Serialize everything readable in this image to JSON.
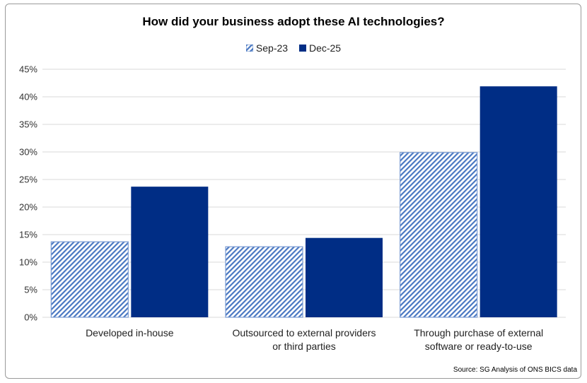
{
  "chart_data": {
    "type": "bar",
    "title": "How did your business adopt these AI technologies?",
    "categories": [
      "Developed in-house",
      "Outsourced to external providers or third parties",
      "Through purchase of external software or ready-to-use"
    ],
    "category_lines": [
      [
        "Developed in-house"
      ],
      [
        "Outsourced to external providers",
        "or third parties"
      ],
      [
        "Through purchase of external",
        "software or ready-to-use"
      ]
    ],
    "series": [
      {
        "name": "Sep-23",
        "values": [
          13.7,
          12.8,
          29.9
        ],
        "color": "#4a78c2",
        "pattern": "diagonal-hatch"
      },
      {
        "name": "Dec-25",
        "values": [
          23.7,
          14.4,
          41.9
        ],
        "color": "#002d85"
      }
    ],
    "ylim": [
      0,
      45
    ],
    "yticks": [
      "0%",
      "5%",
      "10%",
      "15%",
      "20%",
      "25%",
      "30%",
      "35%",
      "40%",
      "45%"
    ],
    "ytick_values": [
      0,
      5,
      10,
      15,
      20,
      25,
      30,
      35,
      40,
      45
    ],
    "grid": true,
    "legend": "top-center",
    "source": "Source: SG Analysis of ONS BICS data"
  }
}
